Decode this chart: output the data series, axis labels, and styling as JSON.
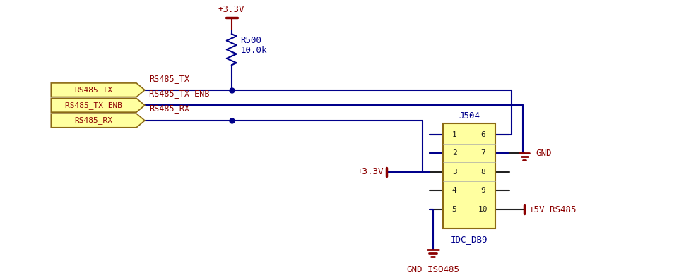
{
  "bg_color": "#ffffff",
  "wire_color": "#00008B",
  "label_color": "#8B0000",
  "component_color": "#00008B",
  "box_fill": "#FFFFA0",
  "box_edge": "#8B6914",
  "power_color": "#8B0000",
  "connector_label": "J504",
  "connector_subtype": "IDC_DB9",
  "resistor_label": "R500",
  "resistor_value": "10.0k",
  "power_top": "+3.3V",
  "power_mid": "+3.3V",
  "gnd_label": "GND",
  "gnd_iso_label": "GND_ISO485",
  "pwr5v_label": "+5V_RS485",
  "net_labels": [
    "RS485_TX",
    "RS485_TX ENB",
    "RS485_RX"
  ],
  "connector_boxes": [
    "RS485_TX",
    "RS485_TX ENB",
    "RS485_RX"
  ],
  "pin_labels_left": [
    "1",
    "2",
    "3",
    "4",
    "5"
  ],
  "pin_labels_right": [
    "6",
    "7",
    "8",
    "9",
    "10"
  ]
}
